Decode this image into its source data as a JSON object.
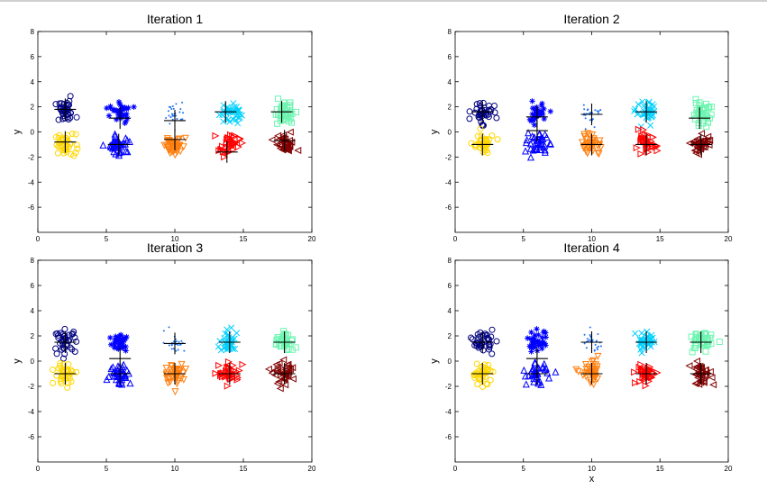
{
  "chart_data": [
    {
      "type": "scatter",
      "title": "Iteration 1",
      "xlabel": "",
      "ylabel": "y",
      "xlim": [
        0,
        20
      ],
      "ylim": [
        -8,
        8
      ],
      "xticks": [
        "0",
        "5",
        "10",
        "15",
        "20"
      ],
      "yticks": [
        "8",
        "6",
        "4",
        "2",
        "0",
        "-2",
        "-4",
        "-6"
      ],
      "clusters": [
        {
          "center": [
            2,
            1.6
          ],
          "color": "#000080",
          "marker": "circle"
        },
        {
          "center": [
            2,
            -1.0
          ],
          "color": "#ffd700",
          "marker": "circle"
        },
        {
          "center": [
            6,
            1.5
          ],
          "color": "#0000ff",
          "marker": "star"
        },
        {
          "center": [
            6,
            -1.0
          ],
          "color": "#0000ff",
          "marker": "triangle-up"
        },
        {
          "center": [
            10,
            1.5
          ],
          "color": "#1e6ff0",
          "marker": "dot"
        },
        {
          "center": [
            10,
            -1.0
          ],
          "color": "#ff7f0e",
          "marker": "triangle-down"
        },
        {
          "center": [
            14,
            1.5
          ],
          "color": "#00d0ff",
          "marker": "x"
        },
        {
          "center": [
            14,
            -1.0
          ],
          "color": "#ff0000",
          "marker": "triangle-right"
        },
        {
          "center": [
            18,
            1.5
          ],
          "color": "#6cf5b0",
          "marker": "square"
        },
        {
          "center": [
            18,
            -1.0
          ],
          "color": "#800000",
          "marker": "triangle-left"
        }
      ],
      "centroids": [
        [
          2.0,
          1.8
        ],
        [
          6.0,
          1.1
        ],
        [
          10.0,
          0.9
        ],
        [
          13.7,
          1.6
        ],
        [
          17.8,
          1.6
        ],
        [
          2.0,
          -0.8
        ],
        [
          5.9,
          -1.0
        ],
        [
          10.0,
          -0.6
        ],
        [
          13.8,
          -1.6
        ],
        [
          18.0,
          -0.7
        ]
      ]
    },
    {
      "type": "scatter",
      "title": "Iteration 2",
      "xlabel": "",
      "ylabel": "y",
      "xlim": [
        0,
        20
      ],
      "ylim": [
        -8,
        8
      ],
      "xticks": [
        "0",
        "5",
        "10",
        "15",
        "20"
      ],
      "yticks": [
        "8",
        "6",
        "4",
        "2",
        "0",
        "-2",
        "-4",
        "-6"
      ],
      "clusters": [
        {
          "center": [
            2,
            1.6
          ],
          "color": "#000080",
          "marker": "circle"
        },
        {
          "center": [
            2,
            -1.0
          ],
          "color": "#ffd700",
          "marker": "circle"
        },
        {
          "center": [
            6,
            1.5
          ],
          "color": "#0000ff",
          "marker": "star"
        },
        {
          "center": [
            6,
            -1.0
          ],
          "color": "#0000ff",
          "marker": "triangle-up"
        },
        {
          "center": [
            10,
            1.5
          ],
          "color": "#1e6ff0",
          "marker": "dot"
        },
        {
          "center": [
            10,
            -1.0
          ],
          "color": "#ff7f0e",
          "marker": "triangle-down"
        },
        {
          "center": [
            14,
            1.5
          ],
          "color": "#00d0ff",
          "marker": "x"
        },
        {
          "center": [
            14,
            -1.0
          ],
          "color": "#ff0000",
          "marker": "triangle-right"
        },
        {
          "center": [
            18,
            1.5
          ],
          "color": "#6cf5b0",
          "marker": "square"
        },
        {
          "center": [
            18,
            -1.0
          ],
          "color": "#800000",
          "marker": "triangle-left"
        }
      ],
      "centroids": [
        [
          2.0,
          1.6
        ],
        [
          6.0,
          1.2
        ],
        [
          10.0,
          1.4
        ],
        [
          14.0,
          1.6
        ],
        [
          17.9,
          1.1
        ],
        [
          2.0,
          -1.0
        ],
        [
          6.0,
          0.1
        ],
        [
          10.0,
          -1.0
        ],
        [
          14.0,
          -1.0
        ],
        [
          18.0,
          -1.0
        ]
      ]
    },
    {
      "type": "scatter",
      "title": "Iteration 3",
      "xlabel": "",
      "ylabel": "y",
      "xlim": [
        0,
        20
      ],
      "ylim": [
        -8,
        8
      ],
      "xticks": [
        "0",
        "5",
        "10",
        "15",
        "20"
      ],
      "yticks": [
        "8",
        "6",
        "4",
        "2",
        "0",
        "-2",
        "-4",
        "-6"
      ],
      "clusters": [
        {
          "center": [
            2,
            1.6
          ],
          "color": "#000080",
          "marker": "circle"
        },
        {
          "center": [
            2,
            -1.0
          ],
          "color": "#ffd700",
          "marker": "circle"
        },
        {
          "center": [
            6,
            1.5
          ],
          "color": "#0000ff",
          "marker": "star"
        },
        {
          "center": [
            6,
            -1.0
          ],
          "color": "#0000ff",
          "marker": "triangle-up"
        },
        {
          "center": [
            10,
            1.5
          ],
          "color": "#1e6ff0",
          "marker": "dot"
        },
        {
          "center": [
            10,
            -1.0
          ],
          "color": "#ff7f0e",
          "marker": "triangle-down"
        },
        {
          "center": [
            14,
            1.5
          ],
          "color": "#00d0ff",
          "marker": "x"
        },
        {
          "center": [
            14,
            -1.0
          ],
          "color": "#ff0000",
          "marker": "triangle-right"
        },
        {
          "center": [
            18,
            1.5
          ],
          "color": "#6cf5b0",
          "marker": "square"
        },
        {
          "center": [
            18,
            -1.0
          ],
          "color": "#800000",
          "marker": "triangle-left"
        }
      ],
      "centroids": [
        [
          2.0,
          1.5
        ],
        [
          6.0,
          0.2
        ],
        [
          10.0,
          1.4
        ],
        [
          14.0,
          1.5
        ],
        [
          18.0,
          1.5
        ],
        [
          2.0,
          -1.0
        ],
        [
          6.0,
          -1.0
        ],
        [
          10.0,
          -1.0
        ],
        [
          14.0,
          -1.0
        ],
        [
          18.0,
          -1.0
        ]
      ]
    },
    {
      "type": "scatter",
      "title": "Iteration 4",
      "xlabel": "x",
      "ylabel": "y",
      "xlim": [
        0,
        20
      ],
      "ylim": [
        -8,
        8
      ],
      "xticks": [
        "0",
        "5",
        "10",
        "15",
        "20"
      ],
      "yticks": [
        "8",
        "6",
        "4",
        "2",
        "0",
        "-2",
        "-4",
        "-6"
      ],
      "clusters": [
        {
          "center": [
            2,
            1.6
          ],
          "color": "#000080",
          "marker": "circle"
        },
        {
          "center": [
            2,
            -1.0
          ],
          "color": "#ffd700",
          "marker": "circle"
        },
        {
          "center": [
            6,
            1.5
          ],
          "color": "#0000ff",
          "marker": "star"
        },
        {
          "center": [
            6,
            -1.0
          ],
          "color": "#0000ff",
          "marker": "triangle-up"
        },
        {
          "center": [
            10,
            1.5
          ],
          "color": "#1e6ff0",
          "marker": "dot"
        },
        {
          "center": [
            10,
            -1.0
          ],
          "color": "#ff7f0e",
          "marker": "triangle-down"
        },
        {
          "center": [
            14,
            1.5
          ],
          "color": "#00d0ff",
          "marker": "x"
        },
        {
          "center": [
            14,
            -1.0
          ],
          "color": "#ff0000",
          "marker": "triangle-right"
        },
        {
          "center": [
            18,
            1.5
          ],
          "color": "#6cf5b0",
          "marker": "square"
        },
        {
          "center": [
            18,
            -1.0
          ],
          "color": "#800000",
          "marker": "triangle-left"
        }
      ],
      "centroids": [
        [
          2.0,
          1.5
        ],
        [
          6.0,
          0.2
        ],
        [
          10.0,
          1.5
        ],
        [
          14.0,
          1.5
        ],
        [
          18.0,
          1.5
        ],
        [
          2.0,
          -1.0
        ],
        [
          6.0,
          -1.0
        ],
        [
          10.0,
          -1.0
        ],
        [
          14.0,
          -1.0
        ],
        [
          18.0,
          -1.0
        ]
      ]
    }
  ],
  "panels_bottom_xlabel": "x"
}
